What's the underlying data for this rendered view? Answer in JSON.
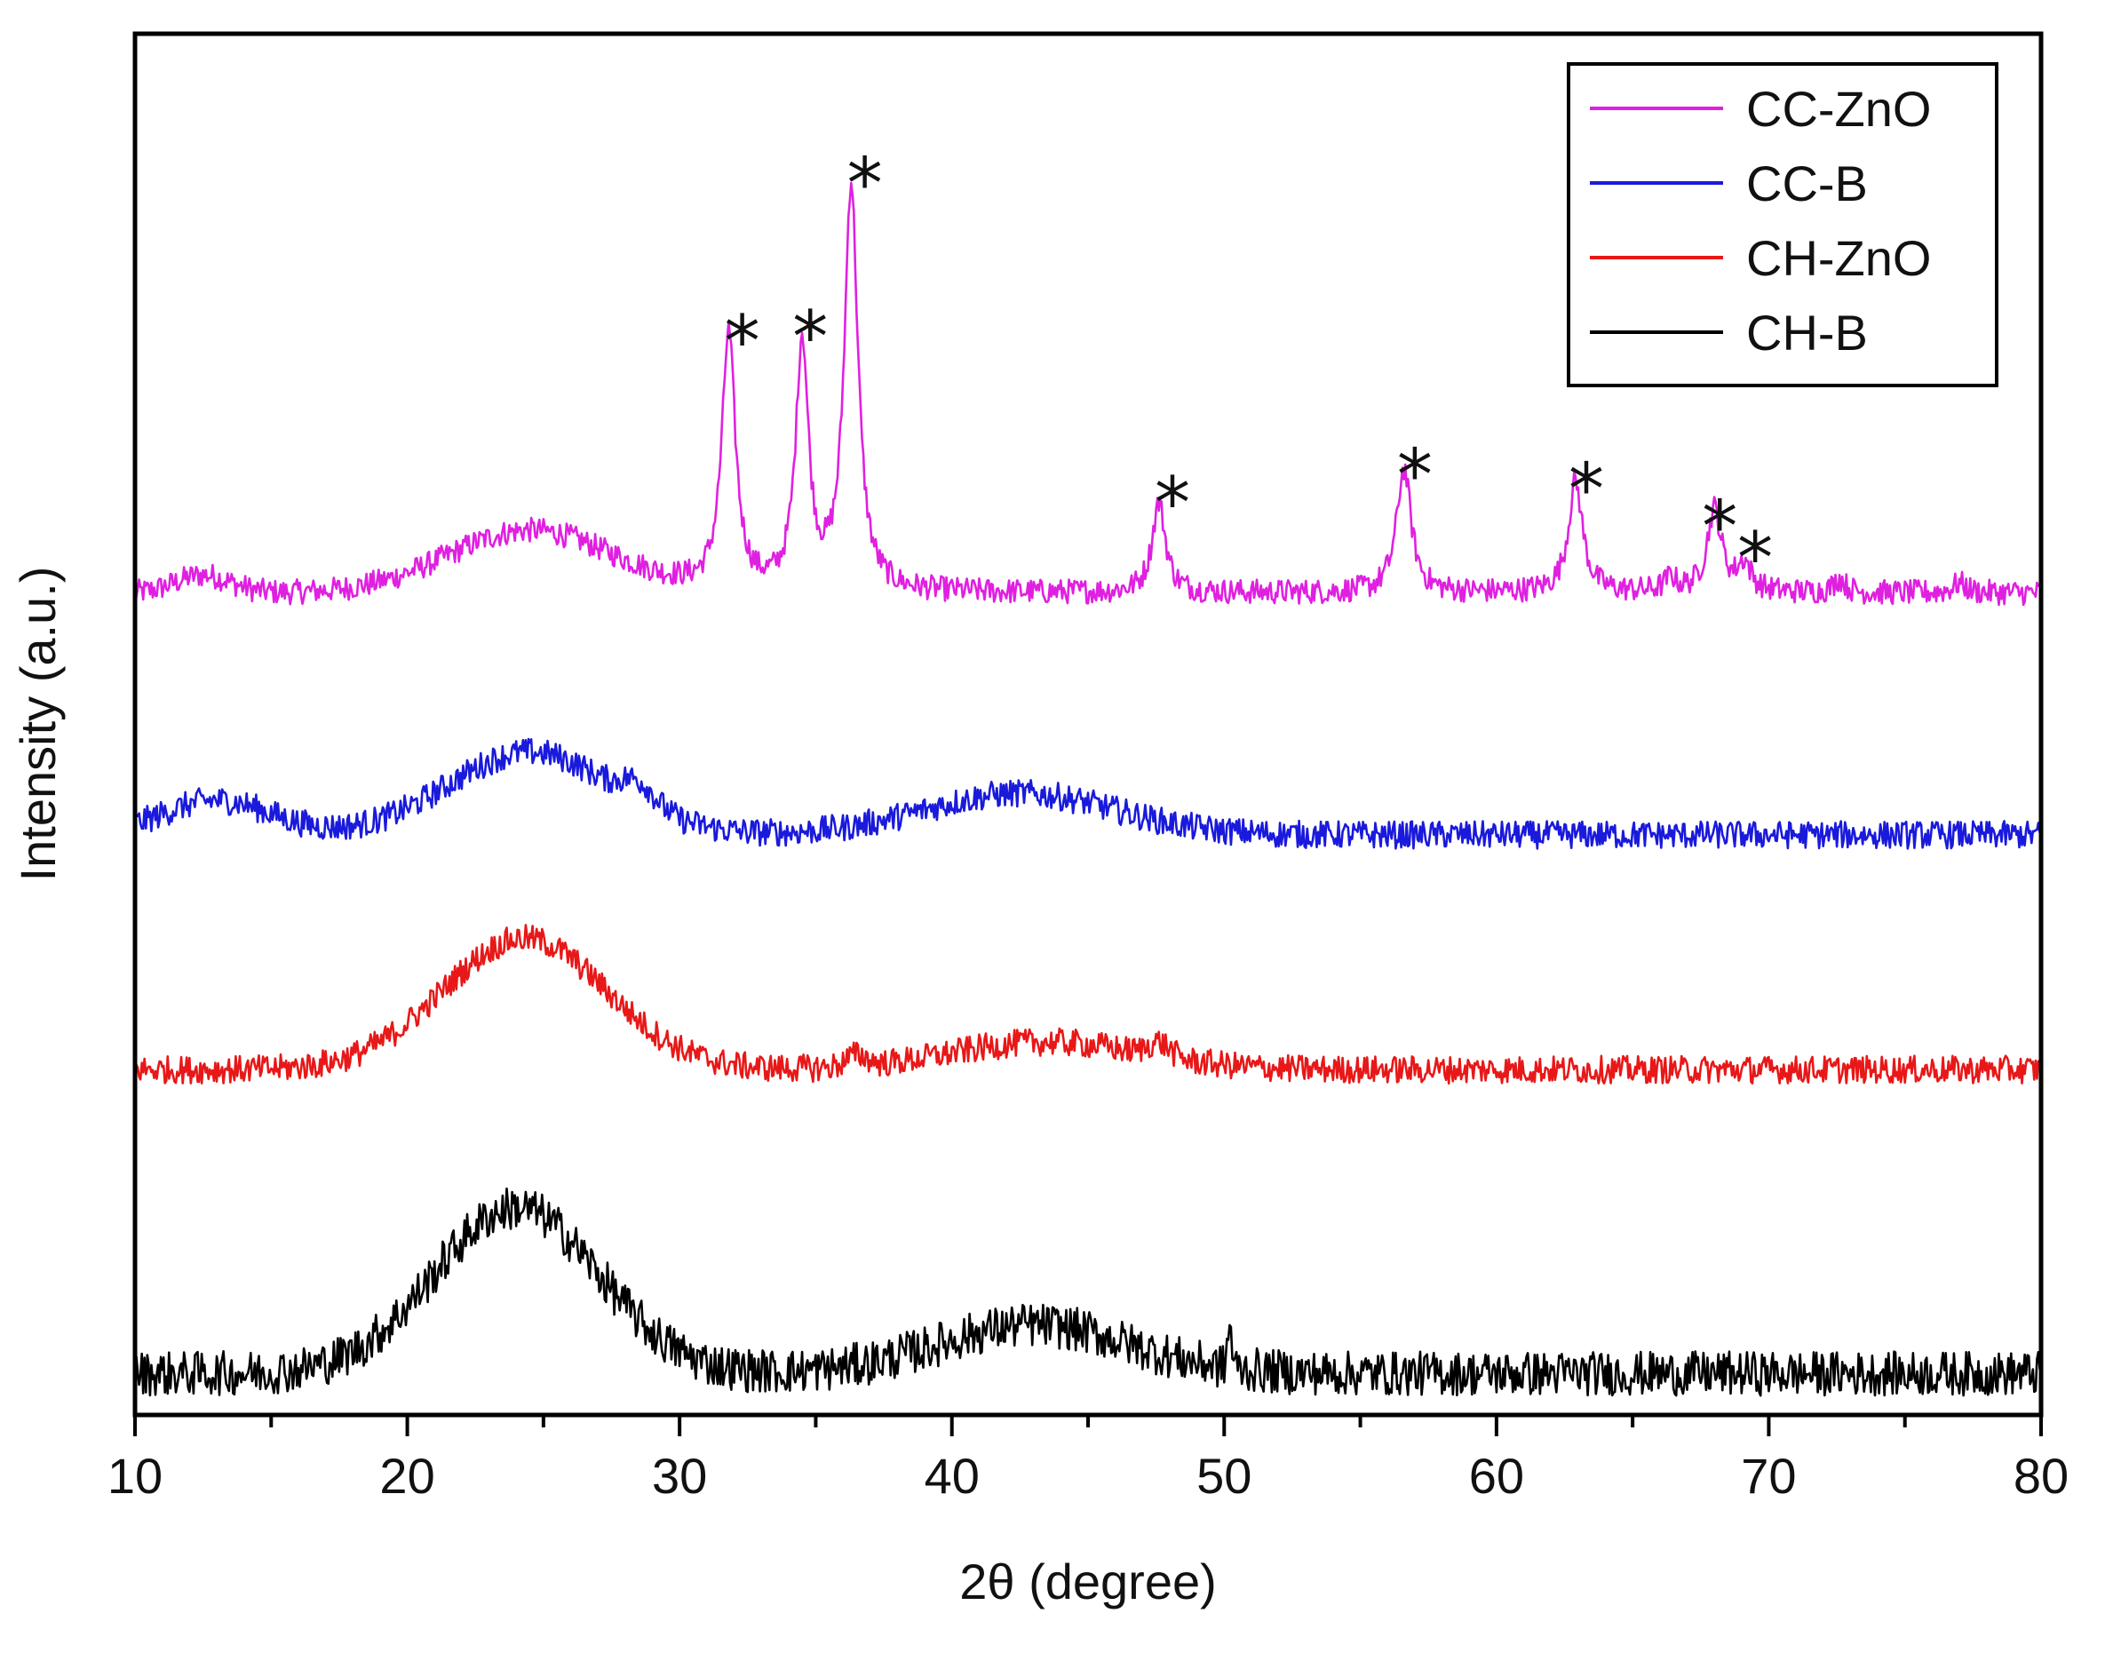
{
  "chart_data": {
    "type": "line",
    "title": "",
    "xlabel": "2θ (degree)",
    "ylabel": "Intensity (a.u.)",
    "xlim": [
      10,
      80
    ],
    "ylim": [
      0,
      100
    ],
    "xticks": [
      10,
      20,
      30,
      40,
      50,
      60,
      70,
      80
    ],
    "xtick_labels": [
      "10",
      "20",
      "30",
      "40",
      "50",
      "60",
      "70",
      "80"
    ],
    "yticks_shown": false,
    "legend_position": "top-right",
    "series": [
      {
        "name": "CC-ZnO",
        "color": "#e020e0",
        "baseline": 59.5,
        "noise": 0.9,
        "broad_humps": [
          {
            "center": 12.5,
            "height": 1.3,
            "width": 1.0
          },
          {
            "center": 24.5,
            "height": 4.5,
            "width": 3.0
          }
        ],
        "peaks": [
          {
            "center": 31.8,
            "height": 18.5,
            "width": 0.3
          },
          {
            "center": 34.5,
            "height": 18.0,
            "width": 0.28
          },
          {
            "center": 36.3,
            "height": 29.5,
            "width": 0.3
          },
          {
            "center": 47.6,
            "height": 6.5,
            "width": 0.3
          },
          {
            "center": 56.6,
            "height": 9.0,
            "width": 0.32
          },
          {
            "center": 62.9,
            "height": 8.0,
            "width": 0.32
          },
          {
            "center": 68.0,
            "height": 6.0,
            "width": 0.32
          },
          {
            "center": 69.1,
            "height": 2.0,
            "width": 0.3
          },
          {
            "center": 66.4,
            "height": 1.0,
            "width": 0.25
          },
          {
            "center": 72.6,
            "height": 1.0,
            "width": 0.25
          },
          {
            "center": 77.0,
            "height": 0.7,
            "width": 0.3
          }
        ],
        "markers": [
          {
            "x": 32.3,
            "y": 79.3
          },
          {
            "x": 34.8,
            "y": 79.6
          },
          {
            "x": 36.8,
            "y": 90.7
          },
          {
            "x": 48.1,
            "y": 67.6
          },
          {
            "x": 57.0,
            "y": 69.6
          },
          {
            "x": 63.3,
            "y": 68.6
          },
          {
            "x": 68.2,
            "y": 65.9
          },
          {
            "x": 69.5,
            "y": 63.6
          }
        ]
      },
      {
        "name": "CC-B",
        "color": "#1a1adc",
        "baseline": 42.0,
        "noise": 1.0,
        "broad_humps": [
          {
            "center": 13.0,
            "height": 2.5,
            "width": 2.0
          },
          {
            "center": 24.5,
            "height": 6.0,
            "width": 3.0
          },
          {
            "center": 28.5,
            "height": 1.5,
            "width": 0.6
          },
          {
            "center": 42.5,
            "height": 3.0,
            "width": 3.5
          }
        ],
        "peaks": [],
        "markers": []
      },
      {
        "name": "CH-ZnO",
        "color": "#e81818",
        "baseline": 25.0,
        "noise": 1.0,
        "broad_humps": [
          {
            "center": 24.3,
            "height": 9.5,
            "width": 3.0
          },
          {
            "center": 43.5,
            "height": 2.0,
            "width": 3.5
          },
          {
            "center": 36.5,
            "height": 0.8,
            "width": 0.4
          },
          {
            "center": 47.6,
            "height": 1.0,
            "width": 0.4
          }
        ],
        "peaks": [],
        "markers": []
      },
      {
        "name": "CH-B",
        "color": "#000000",
        "baseline": 3.0,
        "noise": 1.6,
        "broad_humps": [
          {
            "center": 24.0,
            "height": 12.0,
            "width": 3.0
          },
          {
            "center": 43.0,
            "height": 3.5,
            "width": 3.5
          },
          {
            "center": 50.2,
            "height": 3.0,
            "width": 0.08
          }
        ],
        "peaks": [],
        "markers": []
      }
    ],
    "annotation_symbol": "*"
  }
}
